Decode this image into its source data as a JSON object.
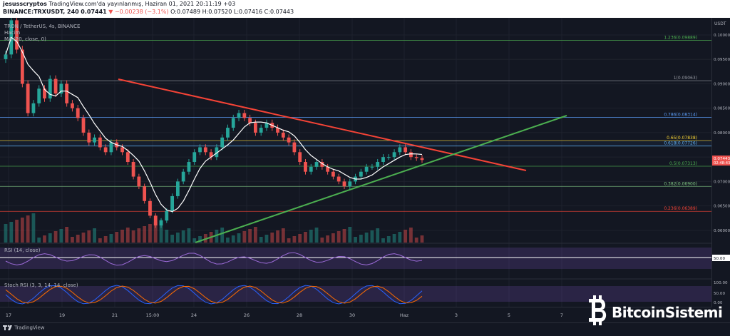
{
  "header": {
    "author": "jesusscryptos",
    "published_text": "TradingView.com'da yayınlanmış, Haziran 01, 2021 20:11:19 +03",
    "symbol": "BINANCE:TRXUSDT, 240",
    "last_price": "0.07441",
    "change": "▼ −0.00238 (−3.1%)",
    "ohlc": "O:0.07489 H:0.07520 L:0.07416 C:0.07443"
  },
  "legend": {
    "symbol_name": "TRON / TetherUS, 4s, BINANCE",
    "volume_label": "Hacim",
    "ma_label": "MA (20, close, 0)",
    "rsi_label": "RSI (14, close)",
    "stoch_label": "Stoch RSI (3, 3, 14, 14, close)"
  },
  "price_axis": {
    "currency": "USDT",
    "ticks": [
      "0.10000",
      "0.09500",
      "0.09000",
      "0.08500",
      "0.08000",
      "0.07500",
      "0.07000",
      "0.06500",
      "0.06000"
    ],
    "current_price": "0.07443",
    "countdown": "02:48:43",
    "rsi_ticks": [
      "50.00"
    ],
    "stoch_ticks": [
      "100.00",
      "50.00",
      "0.00"
    ]
  },
  "time_axis": {
    "ticks": [
      "17",
      "19",
      "21",
      "15:00",
      "24",
      "26",
      "28",
      "30",
      "Haz",
      "3",
      "5",
      "7"
    ]
  },
  "fib_levels": [
    {
      "label": "1.236(0.09889)",
      "value": 0.09889,
      "color": "#4caf50"
    },
    {
      "label": "1(0.09063)",
      "value": 0.09063,
      "color": "#9598a1"
    },
    {
      "label": "0.786(0.08314)",
      "value": 0.08314,
      "color": "#5b9cf6"
    },
    {
      "label": "0.65(0.07838)",
      "value": 0.07838,
      "color": "#fdd835"
    },
    {
      "label": "0.618(0.07726)",
      "value": 0.07726,
      "color": "#64b5f6"
    },
    {
      "label": "0.5(0.07313)",
      "value": 0.07313,
      "color": "#4caf50"
    },
    {
      "label": "0.382(0.06900)",
      "value": 0.069,
      "color": "#81c784"
    },
    {
      "label": "0.236(0.06389)",
      "value": 0.06389,
      "color": "#f44336"
    }
  ],
  "chart_data": {
    "type": "candlestick",
    "xlabel": "",
    "ylabel": "",
    "ylim": [
      0.0575,
      0.1035
    ],
    "x": [
      "17",
      "19",
      "21",
      "15:00",
      "24",
      "26",
      "28",
      "30",
      "Haz",
      "3",
      "5",
      "7"
    ],
    "trendlines": [
      {
        "color": "#f44336"
      },
      {
        "color": "#4caf50"
      }
    ],
    "series": [
      {
        "name": "MA (20, close, 0)",
        "color": "#ffffff"
      }
    ]
  },
  "brand": {
    "logo_icon": "bitcoin-b-icon",
    "text": "BitcoinSistemi"
  },
  "footer": {
    "tradingview": "TradingView"
  },
  "colors": {
    "up": "#26a69a",
    "down": "#ef5350",
    "background": "#131722",
    "rsi_band": "#7e57c2"
  }
}
